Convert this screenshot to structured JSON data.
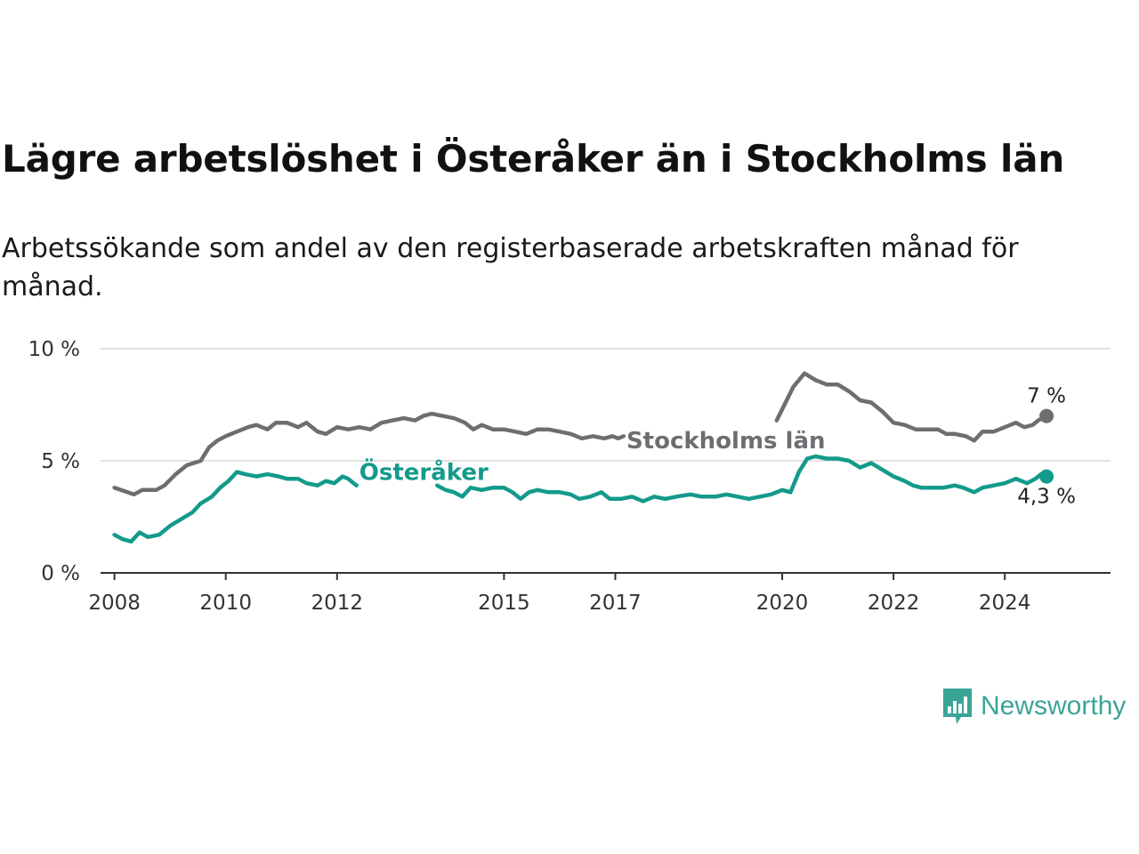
{
  "title": "Lägre arbetslöshet i Österåker än i Stockholms län",
  "subtitle": "Arbetssökande som andel av den registerbaserade arbetskraften månad för månad.",
  "brand": {
    "name": "Newsworthy",
    "icon": "newsworthy-logo-icon",
    "color": "#3aa595"
  },
  "chart_data": {
    "type": "line",
    "title": "Lägre arbetslöshet i Österåker än i Stockholms län",
    "xlabel": "",
    "ylabel": "",
    "xlim": [
      2007.75,
      2025.9
    ],
    "ylim": [
      0,
      10
    ],
    "yticks": [
      0,
      5,
      10
    ],
    "ytick_labels": [
      "0 %",
      "5 %",
      "10 %"
    ],
    "xticks": [
      2008,
      2010,
      2012,
      2015,
      2017,
      2020,
      2022,
      2024
    ],
    "xtick_labels": [
      "2008",
      "2010",
      "2012",
      "2015",
      "2017",
      "2020",
      "2022",
      "2024"
    ],
    "grid": true,
    "series": [
      {
        "name": "Stockholms län",
        "color": "#6e6e72",
        "end_label": "7 %",
        "gaps": [
          [
            2017.2,
            2019.85
          ]
        ],
        "points": [
          [
            2008.0,
            3.8
          ],
          [
            2008.35,
            3.5
          ],
          [
            2008.5,
            3.7
          ],
          [
            2008.75,
            3.7
          ],
          [
            2008.9,
            3.9
          ],
          [
            2009.1,
            4.4
          ],
          [
            2009.3,
            4.8
          ],
          [
            2009.55,
            5.0
          ],
          [
            2009.7,
            5.6
          ],
          [
            2009.85,
            5.9
          ],
          [
            2010.0,
            6.1
          ],
          [
            2010.2,
            6.3
          ],
          [
            2010.4,
            6.5
          ],
          [
            2010.55,
            6.6
          ],
          [
            2010.75,
            6.4
          ],
          [
            2010.9,
            6.7
          ],
          [
            2011.1,
            6.7
          ],
          [
            2011.3,
            6.5
          ],
          [
            2011.45,
            6.7
          ],
          [
            2011.65,
            6.3
          ],
          [
            2011.8,
            6.2
          ],
          [
            2012.0,
            6.5
          ],
          [
            2012.2,
            6.4
          ],
          [
            2012.4,
            6.5
          ],
          [
            2012.6,
            6.4
          ],
          [
            2012.8,
            6.7
          ],
          [
            2013.0,
            6.8
          ],
          [
            2013.2,
            6.9
          ],
          [
            2013.4,
            6.8
          ],
          [
            2013.55,
            7.0
          ],
          [
            2013.7,
            7.1
          ],
          [
            2013.9,
            7.0
          ],
          [
            2014.1,
            6.9
          ],
          [
            2014.3,
            6.7
          ],
          [
            2014.45,
            6.4
          ],
          [
            2014.6,
            6.6
          ],
          [
            2014.8,
            6.4
          ],
          [
            2015.0,
            6.4
          ],
          [
            2015.2,
            6.3
          ],
          [
            2015.4,
            6.2
          ],
          [
            2015.6,
            6.4
          ],
          [
            2015.8,
            6.4
          ],
          [
            2016.0,
            6.3
          ],
          [
            2016.2,
            6.2
          ],
          [
            2016.4,
            6.0
          ],
          [
            2016.6,
            6.1
          ],
          [
            2016.8,
            6.0
          ],
          [
            2016.95,
            6.1
          ],
          [
            2017.05,
            6.0
          ],
          [
            2017.15,
            6.1
          ],
          [
            2019.9,
            6.8
          ],
          [
            2020.2,
            8.3
          ],
          [
            2020.4,
            8.9
          ],
          [
            2020.6,
            8.6
          ],
          [
            2020.8,
            8.4
          ],
          [
            2021.0,
            8.4
          ],
          [
            2021.2,
            8.1
          ],
          [
            2021.4,
            7.7
          ],
          [
            2021.6,
            7.6
          ],
          [
            2021.8,
            7.2
          ],
          [
            2022.0,
            6.7
          ],
          [
            2022.2,
            6.6
          ],
          [
            2022.4,
            6.4
          ],
          [
            2022.6,
            6.4
          ],
          [
            2022.8,
            6.4
          ],
          [
            2022.95,
            6.2
          ],
          [
            2023.1,
            6.2
          ],
          [
            2023.3,
            6.1
          ],
          [
            2023.45,
            5.9
          ],
          [
            2023.6,
            6.3
          ],
          [
            2023.8,
            6.3
          ],
          [
            2024.0,
            6.5
          ],
          [
            2024.2,
            6.7
          ],
          [
            2024.35,
            6.5
          ],
          [
            2024.5,
            6.6
          ],
          [
            2024.6,
            6.8
          ],
          [
            2024.75,
            7.0
          ]
        ]
      },
      {
        "name": "Österåker",
        "color": "#139a8b",
        "end_label": "4,3 %",
        "gaps": [
          [
            2012.35,
            2013.8
          ]
        ],
        "points": [
          [
            2008.0,
            1.7
          ],
          [
            2008.15,
            1.5
          ],
          [
            2008.3,
            1.4
          ],
          [
            2008.45,
            1.8
          ],
          [
            2008.6,
            1.6
          ],
          [
            2008.8,
            1.7
          ],
          [
            2009.0,
            2.1
          ],
          [
            2009.2,
            2.4
          ],
          [
            2009.4,
            2.7
          ],
          [
            2009.55,
            3.1
          ],
          [
            2009.75,
            3.4
          ],
          [
            2009.9,
            3.8
          ],
          [
            2010.05,
            4.1
          ],
          [
            2010.2,
            4.5
          ],
          [
            2010.35,
            4.4
          ],
          [
            2010.55,
            4.3
          ],
          [
            2010.75,
            4.4
          ],
          [
            2010.95,
            4.3
          ],
          [
            2011.1,
            4.2
          ],
          [
            2011.3,
            4.2
          ],
          [
            2011.45,
            4.0
          ],
          [
            2011.65,
            3.9
          ],
          [
            2011.8,
            4.1
          ],
          [
            2011.95,
            4.0
          ],
          [
            2012.1,
            4.3
          ],
          [
            2012.2,
            4.2
          ],
          [
            2012.3,
            4.0
          ],
          [
            2012.35,
            3.9
          ],
          [
            2013.8,
            3.9
          ],
          [
            2013.95,
            3.7
          ],
          [
            2014.1,
            3.6
          ],
          [
            2014.25,
            3.4
          ],
          [
            2014.4,
            3.8
          ],
          [
            2014.6,
            3.7
          ],
          [
            2014.8,
            3.8
          ],
          [
            2015.0,
            3.8
          ],
          [
            2015.15,
            3.6
          ],
          [
            2015.3,
            3.3
          ],
          [
            2015.45,
            3.6
          ],
          [
            2015.6,
            3.7
          ],
          [
            2015.8,
            3.6
          ],
          [
            2016.0,
            3.6
          ],
          [
            2016.2,
            3.5
          ],
          [
            2016.35,
            3.3
          ],
          [
            2016.55,
            3.4
          ],
          [
            2016.75,
            3.6
          ],
          [
            2016.9,
            3.3
          ],
          [
            2017.1,
            3.3
          ],
          [
            2017.3,
            3.4
          ],
          [
            2017.5,
            3.2
          ],
          [
            2017.7,
            3.4
          ],
          [
            2017.9,
            3.3
          ],
          [
            2018.1,
            3.4
          ],
          [
            2018.35,
            3.5
          ],
          [
            2018.55,
            3.4
          ],
          [
            2018.8,
            3.4
          ],
          [
            2019.0,
            3.5
          ],
          [
            2019.2,
            3.4
          ],
          [
            2019.4,
            3.3
          ],
          [
            2019.6,
            3.4
          ],
          [
            2019.8,
            3.5
          ],
          [
            2020.0,
            3.7
          ],
          [
            2020.15,
            3.6
          ],
          [
            2020.3,
            4.5
          ],
          [
            2020.45,
            5.1
          ],
          [
            2020.6,
            5.2
          ],
          [
            2020.8,
            5.1
          ],
          [
            2021.0,
            5.1
          ],
          [
            2021.2,
            5.0
          ],
          [
            2021.4,
            4.7
          ],
          [
            2021.6,
            4.9
          ],
          [
            2021.8,
            4.6
          ],
          [
            2022.0,
            4.3
          ],
          [
            2022.2,
            4.1
          ],
          [
            2022.35,
            3.9
          ],
          [
            2022.5,
            3.8
          ],
          [
            2022.7,
            3.8
          ],
          [
            2022.9,
            3.8
          ],
          [
            2023.1,
            3.9
          ],
          [
            2023.25,
            3.8
          ],
          [
            2023.45,
            3.6
          ],
          [
            2023.6,
            3.8
          ],
          [
            2023.8,
            3.9
          ],
          [
            2024.0,
            4.0
          ],
          [
            2024.2,
            4.2
          ],
          [
            2024.4,
            4.0
          ],
          [
            2024.55,
            4.2
          ],
          [
            2024.65,
            4.4
          ],
          [
            2024.75,
            4.3
          ]
        ]
      }
    ],
    "inline_labels": [
      {
        "text": "Stockholms län",
        "series": "Stockholms län",
        "x": 2017.2,
        "y": 5.55
      },
      {
        "text": "Österåker",
        "series": "Österåker",
        "x": 2012.4,
        "y": 4.15
      }
    ]
  }
}
